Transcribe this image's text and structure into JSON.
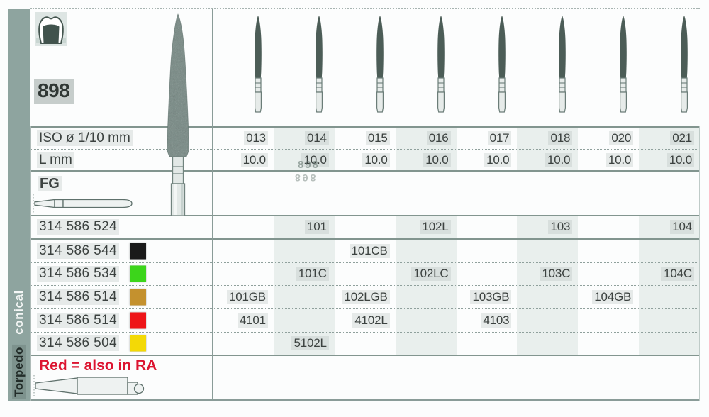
{
  "sidebar": {
    "series_label": "Torpedo",
    "variant_label": "conical"
  },
  "figure": {
    "number": "898",
    "ghost_artifact": "898"
  },
  "labels": {
    "iso": "ISO ø 1/10 mm",
    "length": "L mm",
    "shank": "FG"
  },
  "footer": {
    "note": "Red = also in RA"
  },
  "table": {
    "columns": [
      "013",
      "014",
      "015",
      "016",
      "017",
      "018",
      "020",
      "021"
    ],
    "lengths": [
      "10.0",
      "10.0",
      "10.0",
      "10.0",
      "10.0",
      "10.0",
      "10.0",
      "10.0"
    ],
    "banded_column_indices": [
      1,
      3,
      5,
      7
    ],
    "rows": [
      {
        "code": "314 586 524",
        "chip_color": null,
        "chip_name": null,
        "values": [
          "",
          "101",
          "",
          "102L",
          "",
          "103",
          "",
          "104"
        ]
      },
      {
        "code": "314 586 544",
        "chip_color": "#1a1a1a",
        "chip_name": "black",
        "values": [
          "",
          "",
          "101CB",
          "",
          "",
          "",
          "",
          ""
        ]
      },
      {
        "code": "314 586 534",
        "chip_color": "#3cd51b",
        "chip_name": "green",
        "values": [
          "",
          "101C",
          "",
          "102LC",
          "",
          "103C",
          "",
          "104C"
        ]
      },
      {
        "code": "314 586 514",
        "chip_color": "#c4912e",
        "chip_name": "gold",
        "values": [
          "101GB",
          "",
          "102LGB",
          "",
          "103GB",
          "",
          "104GB",
          ""
        ]
      },
      {
        "code": "314 586 514",
        "chip_color": "#ee1418",
        "chip_name": "red",
        "values": [
          "4101",
          "",
          "4102L",
          "",
          "4103",
          "",
          "",
          ""
        ]
      },
      {
        "code": "314 586 504",
        "chip_color": "#f3d906",
        "chip_name": "yellow",
        "values": [
          "",
          "5102L",
          "",
          "",
          "",
          "",
          "",
          ""
        ]
      }
    ]
  },
  "colors": {
    "sidebar": "#8ea49f",
    "band": "#e9efed",
    "border_solid": "#82958f",
    "note_red": "#dc1430",
    "bur_head": "#4c5d57",
    "shank_fill": "#e6ebe9"
  }
}
